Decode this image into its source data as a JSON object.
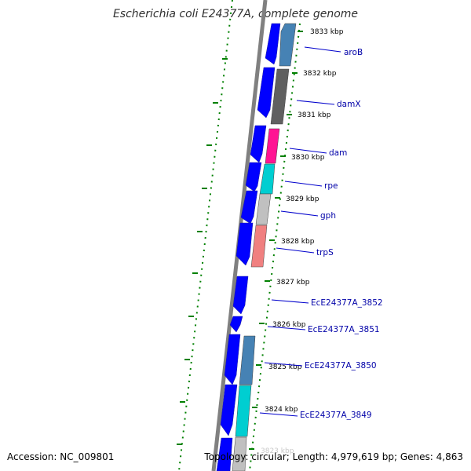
{
  "title": "Escherichia coli E24377A, complete genome",
  "accession": "Accession: NC_009801",
  "summary": "Topology: circular; Length: 4,979,619 bp; Genes: 4,863",
  "colors": {
    "forward": "#0000ff",
    "backbone": "#808080",
    "tick": "#008000",
    "label": "#0000a8"
  },
  "ruler_labels": [
    "3833 kbp",
    "3832 kbp",
    "3831 kbp",
    "3830 kbp",
    "3829 kbp",
    "3828 kbp",
    "3827 kbp",
    "3826 kbp",
    "3825 kbp",
    "3824 kbp",
    "3823 kbp"
  ],
  "gene_labels": [
    "aroB",
    "damX",
    "dam",
    "rpe",
    "gph",
    "trpS",
    "EcE24377A_3852",
    "EcE24377A_3851",
    "EcE24377A_3850",
    "EcE24377A_3849"
  ],
  "reverse_gene_colors": [
    "#4682b4",
    "#606060",
    "#ff1493",
    "#00ced1",
    "#c0c0c0",
    "#f08080",
    "#4682b4",
    "#00ced1",
    "#c0c0c0"
  ]
}
